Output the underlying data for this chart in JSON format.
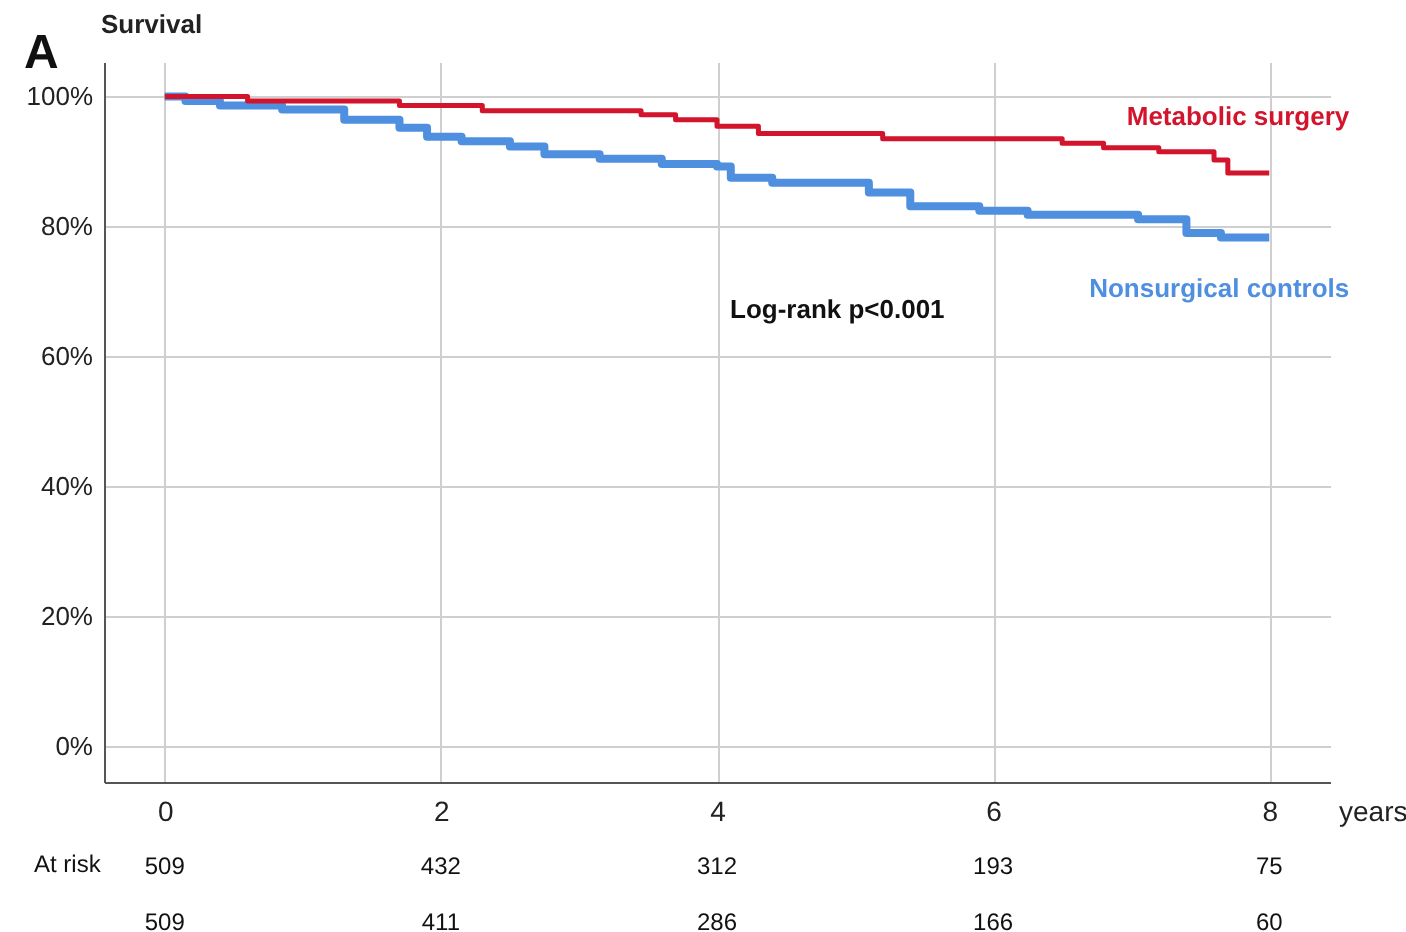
{
  "chart_data": {
    "type": "step",
    "ylabel": "Survival",
    "xlabel": "years",
    "annotations": [
      "A",
      "Log-rank p<0.001",
      "At risk",
      "509",
      "432",
      "312",
      "193",
      "75",
      "509",
      "411",
      "286",
      "166",
      "60"
    ],
    "series": [
      {
        "name": "Metabolic surgery",
        "color": "#d2142c",
        "x": [
          0,
          0.6,
          1.7,
          2.3,
          3.45,
          3.7,
          4.0,
          4.3,
          5.2,
          6.5,
          6.8,
          7.2,
          7.6,
          7.7,
          8.0
        ],
        "values": [
          100,
          99.3,
          98.6,
          97.8,
          97.2,
          96.4,
          95.4,
          94.3,
          93.5,
          92.8,
          92.1,
          91.5,
          90.2,
          88.2,
          88.2
        ]
      },
      {
        "name": "Nonsurgical controls",
        "color": "#4f8fdf",
        "x": [
          0,
          0.15,
          0.4,
          0.85,
          1.3,
          1.7,
          1.9,
          2.15,
          2.5,
          2.75,
          3.15,
          3.6,
          4.0,
          4.1,
          4.4,
          5.1,
          5.4,
          5.9,
          6.25,
          7.05,
          7.4,
          7.65,
          8.0
        ],
        "values": [
          100,
          99.3,
          98.6,
          98.0,
          96.4,
          95.2,
          93.8,
          93.1,
          92.3,
          91.1,
          90.4,
          89.6,
          89.2,
          87.5,
          86.7,
          85.2,
          83.1,
          82.4,
          81.8,
          81.1,
          79.0,
          78.3,
          78.3
        ]
      }
    ],
    "xlim": [
      -0.44,
      8.44
    ],
    "xticks": [
      0,
      2,
      4,
      6,
      8
    ],
    "ylim": [
      -5.5,
      105.3
    ],
    "yticks": [
      {
        "value": 0,
        "label": "0%"
      },
      {
        "value": 20,
        "label": "20%"
      },
      {
        "value": 40,
        "label": "40%"
      },
      {
        "value": 60,
        "label": "60%"
      },
      {
        "value": 80,
        "label": "80%"
      },
      {
        "value": 100,
        "label": "100%"
      }
    ],
    "grid": true,
    "marker": "none",
    "line_style": "solid"
  }
}
